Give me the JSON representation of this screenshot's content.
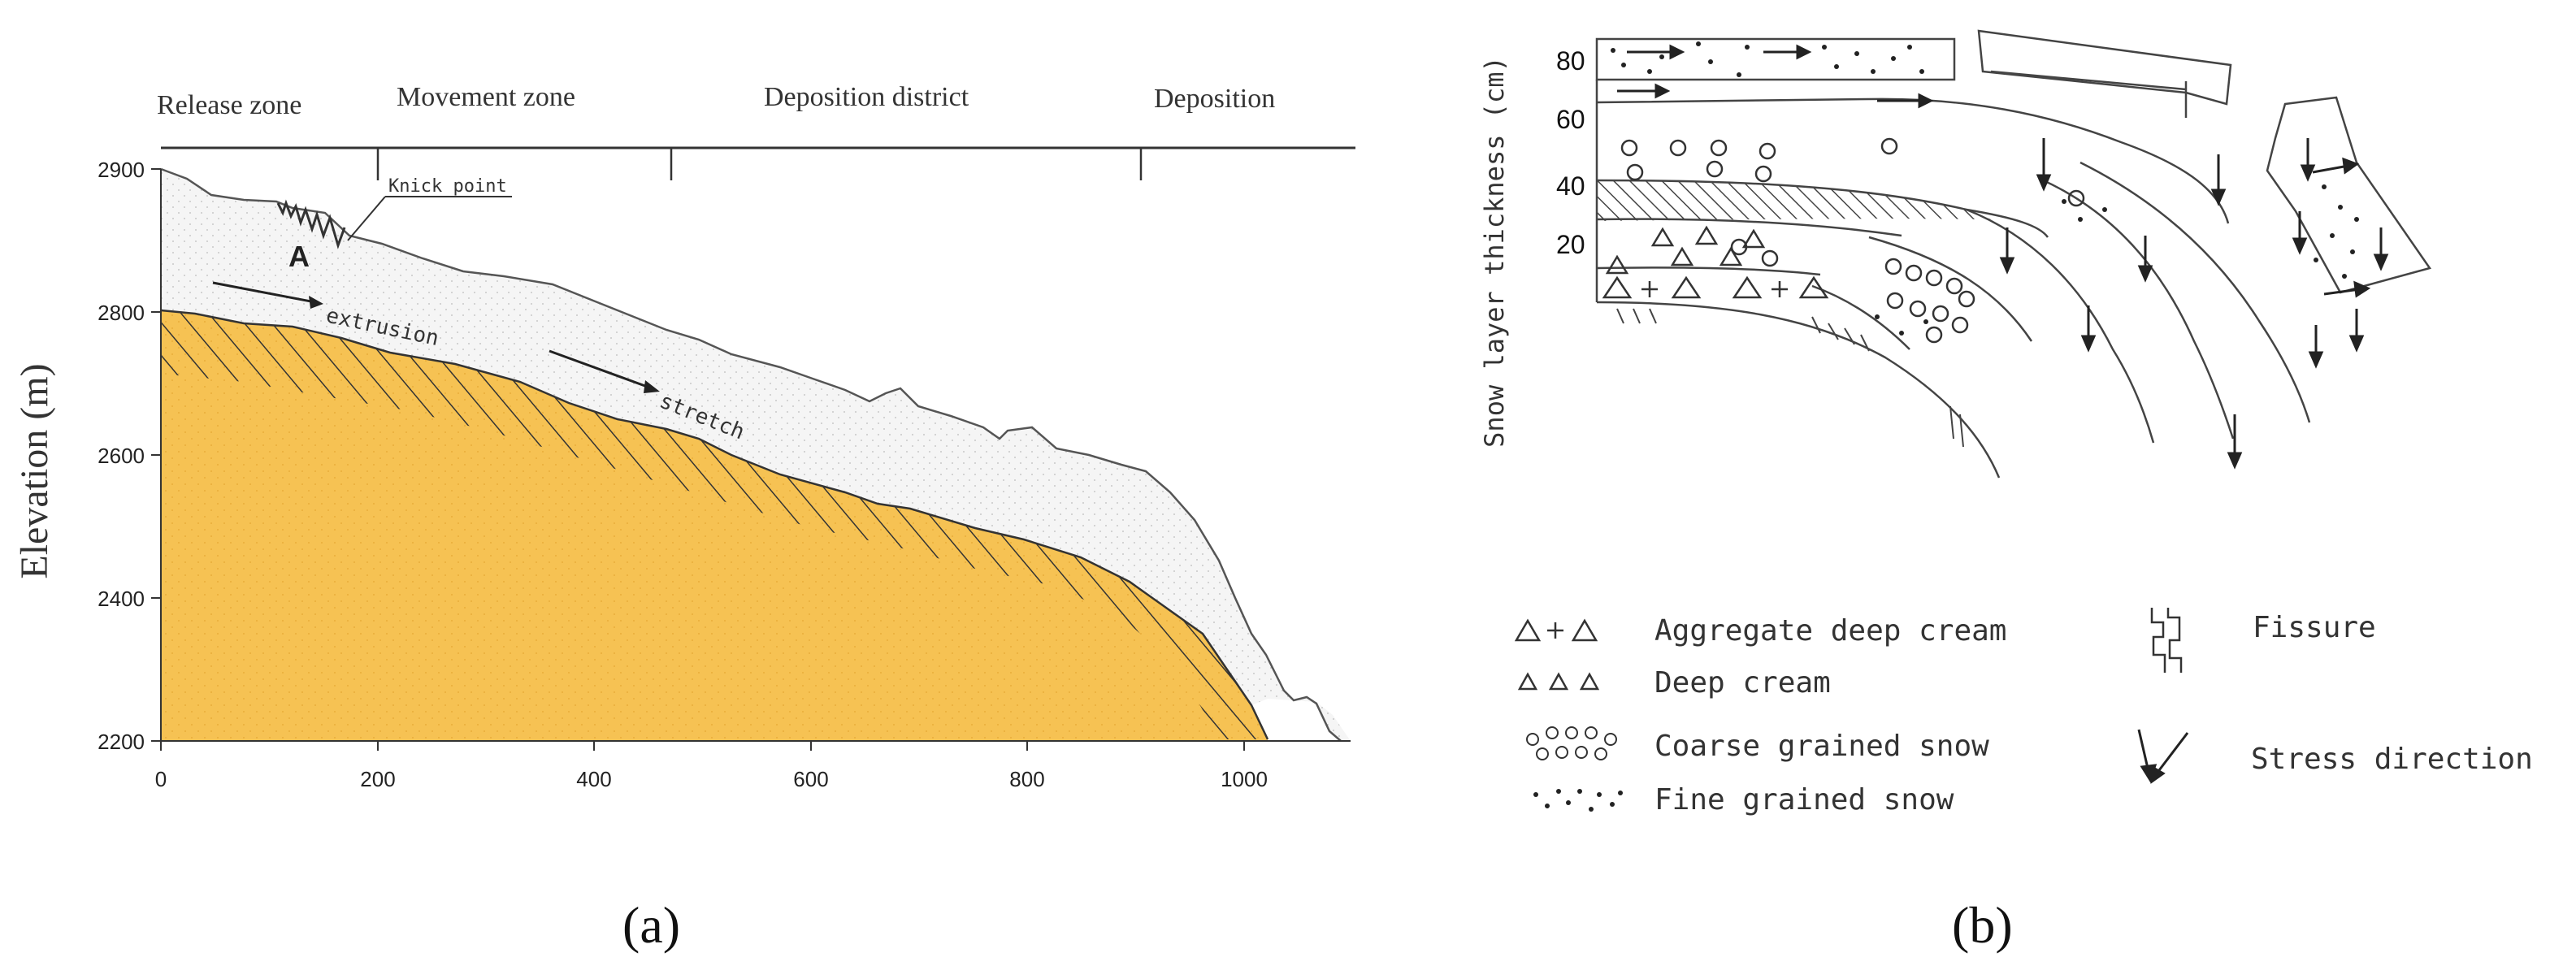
{
  "panel_a": {
    "label": "(a)",
    "zones": [
      "Release zone",
      "Movement zone",
      "Deposition district",
      "Deposition"
    ],
    "y_axis_label": "Elevation (m)",
    "y_ticks": [
      "2900",
      "2800",
      "2600",
      "2400",
      "2200"
    ],
    "x_ticks": [
      "0",
      "200",
      "400",
      "600",
      "800",
      "1000"
    ],
    "annotations": {
      "knick_point": "Knick point",
      "point_a": "A",
      "extrusion": "extrusion",
      "stretch": "stretch"
    },
    "colors": {
      "bedrock": "#f6c253",
      "snow": "#f4f4f4",
      "line": "#555555"
    }
  },
  "panel_b": {
    "label": "(b)",
    "y_axis_label": "Snow layer thickness (cm)",
    "y_ticks": [
      "80",
      "60",
      "40",
      "20"
    ],
    "legend": [
      {
        "symbol_text": "△+△",
        "label": "Aggregate deep cream",
        "icon": "aggregate-deep-cream-icon"
      },
      {
        "symbol_text": "△ △ △",
        "label": "Deep cream",
        "icon": "deep-cream-icon"
      },
      {
        "symbol_text": "",
        "label": "Coarse grained snow",
        "icon": "coarse-grained-snow-icon"
      },
      {
        "symbol_text": "",
        "label": "Fine grained snow",
        "icon": "fine-grained-snow-icon"
      },
      {
        "symbol_text": "",
        "label": "Fissure",
        "icon": "fissure-icon"
      },
      {
        "symbol_text": "",
        "label": "Stress direction",
        "icon": "stress-direction-icon"
      }
    ]
  }
}
